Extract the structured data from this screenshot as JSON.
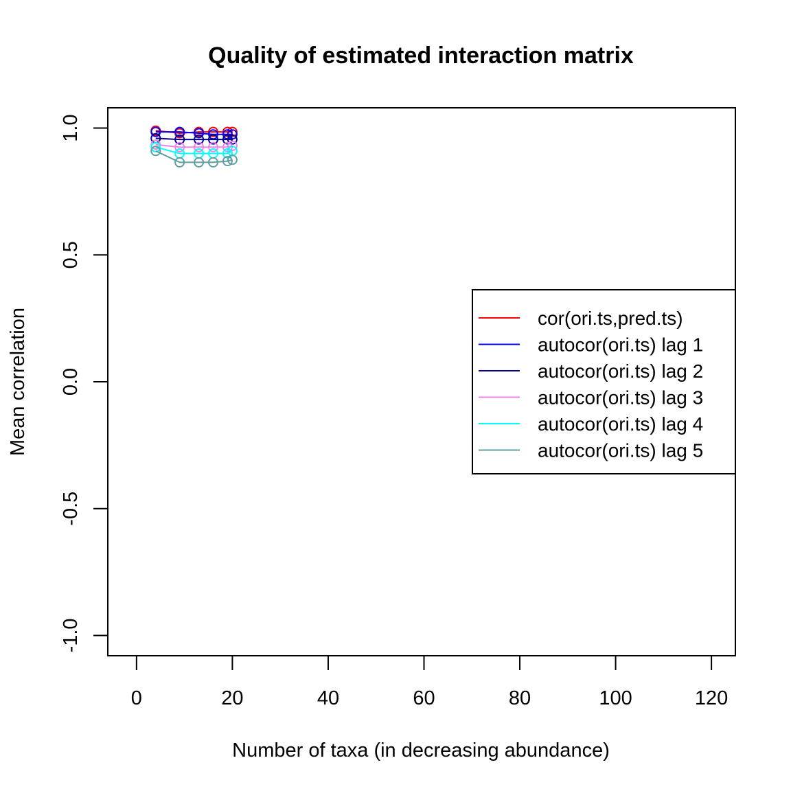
{
  "chart_data": {
    "type": "line",
    "title": "Quality of estimated interaction matrix",
    "xlabel": "Number of taxa (in decreasing abundance)",
    "ylabel": "Mean correlation",
    "xlim": [
      -6,
      125
    ],
    "ylim": [
      -1.08,
      1.08
    ],
    "xticks": [
      0,
      20,
      40,
      60,
      80,
      100,
      120
    ],
    "yticks": [
      -1.0,
      -0.5,
      0.0,
      0.5,
      1.0
    ],
    "xtick_labels": [
      "0",
      "20",
      "40",
      "60",
      "80",
      "100",
      "120"
    ],
    "ytick_labels": [
      "-1.0",
      "-0.5",
      "0.0",
      "0.5",
      "1.0"
    ],
    "legend_position": "right",
    "grid": false,
    "x": [
      4,
      9,
      13,
      16,
      19,
      20
    ],
    "series": [
      {
        "name": "cor(ori.ts,pred.ts)",
        "color": "#ff0000",
        "values": [
          0.99,
          0.98,
          0.985,
          0.985,
          0.985,
          0.985
        ]
      },
      {
        "name": "autocor(ori.ts) lag 1",
        "color": "#0000ff",
        "values": [
          0.985,
          0.985,
          0.98,
          0.975,
          0.975,
          0.975
        ]
      },
      {
        "name": "autocor(ori.ts) lag 2",
        "color": "#00008b",
        "values": [
          0.96,
          0.955,
          0.955,
          0.955,
          0.955,
          0.955
        ]
      },
      {
        "name": "autocor(ori.ts) lag 3",
        "color": "#ee82ee",
        "values": [
          0.935,
          0.925,
          0.925,
          0.925,
          0.925,
          0.93
        ]
      },
      {
        "name": "autocor(ori.ts) lag 4",
        "color": "#00ffff",
        "values": [
          0.925,
          0.9,
          0.9,
          0.9,
          0.9,
          0.91
        ]
      },
      {
        "name": "autocor(ori.ts) lag 5",
        "color": "#5f9ea0",
        "values": [
          0.91,
          0.865,
          0.865,
          0.865,
          0.87,
          0.875
        ]
      }
    ]
  }
}
